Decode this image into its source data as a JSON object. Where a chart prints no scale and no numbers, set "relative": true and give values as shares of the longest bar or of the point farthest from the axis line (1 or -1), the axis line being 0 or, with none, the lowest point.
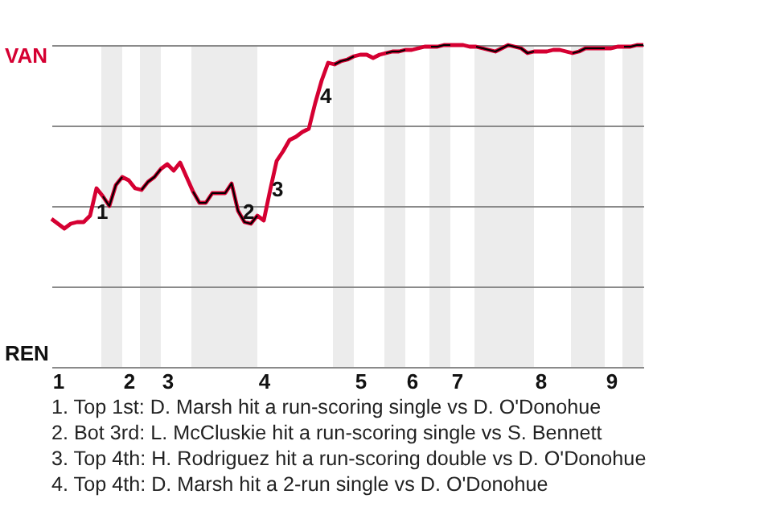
{
  "chart_data": {
    "type": "line",
    "relative": true,
    "categories": [
      null,
      "1",
      null,
      null,
      null,
      null,
      null,
      null,
      null,
      null,
      null,
      null,
      "2",
      null,
      null,
      null,
      null,
      null,
      "3",
      null,
      null,
      null,
      null,
      null,
      null,
      null,
      null,
      null,
      null,
      null,
      null,
      null,
      null,
      "4",
      null,
      null,
      null,
      null,
      null,
      null,
      null,
      null,
      null,
      null,
      null,
      null,
      null,
      null,
      "5",
      null,
      null,
      null,
      null,
      null,
      null,
      null,
      "6",
      null,
      null,
      null,
      null,
      null,
      null,
      "7",
      null,
      null,
      null,
      null,
      null,
      null,
      null,
      null,
      null,
      null,
      null,
      null,
      "8",
      null,
      null,
      null,
      null,
      null,
      null,
      null,
      null,
      null,
      null,
      "9",
      null,
      null,
      null,
      null,
      null
    ],
    "series": [
      {
        "color": "#d50032",
        "values": [
          0.46,
          0.445,
          0.43,
          0.445,
          0.45,
          0.45,
          0.47,
          0.555,
          0.53,
          0.5,
          0.565,
          0.59,
          0.58,
          0.555,
          0.55,
          0.575,
          0.59,
          0.615,
          0.63,
          0.61,
          0.635,
          0.59,
          0.545,
          0.51,
          0.51,
          0.54,
          0.54,
          0.54,
          0.57,
          0.485,
          0.45,
          0.445,
          0.47,
          0.455,
          0.55,
          0.64,
          0.67,
          0.705,
          0.715,
          0.73,
          0.74,
          0.82,
          0.89,
          0.945,
          0.94,
          0.95,
          0.955,
          0.965,
          0.97,
          0.97,
          0.96,
          0.97,
          0.975,
          0.98,
          0.98,
          0.985,
          0.985,
          0.99,
          0.995,
          0.995,
          0.995,
          1,
          1,
          1,
          1,
          0.995,
          0.995,
          0.99,
          0.985,
          0.98,
          0.99,
          1,
          0.995,
          0.99,
          0.975,
          0.98,
          0.98,
          0.98,
          0.985,
          0.985,
          0.98,
          0.975,
          0.98,
          0.99,
          0.99,
          0.99,
          0.99,
          0.99,
          0.995,
          0.995,
          0.995,
          1,
          1
        ]
      }
    ],
    "grid": "y",
    "annotations": [
      "1",
      "2",
      "3",
      "4",
      "VAN",
      "REN",
      "1. Top 1st: D. Marsh hit a run-scoring single vs D. O'Donohue",
      "2. Bot 3rd: L. McCluskie hit a run-scoring single vs S. Bennett",
      "3. Top 4th: H. Rodriguez hit a run-scoring double vs D. O'Donohue",
      "4. Top 4th: D. Marsh hit a 2-run single vs D. O'Donohue"
    ]
  }
}
